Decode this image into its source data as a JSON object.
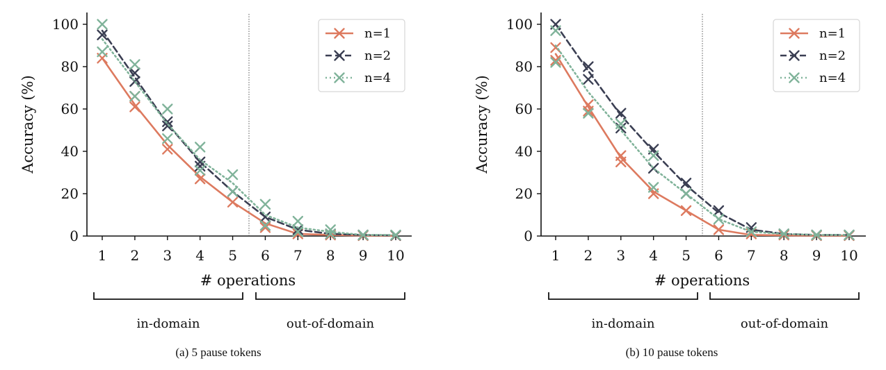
{
  "chart_data": [
    {
      "type": "line",
      "caption": "(a) 5 pause tokens",
      "xlabel": "# operations",
      "ylabel": "Accuracy (%)",
      "x": [
        1,
        2,
        3,
        4,
        5,
        6,
        7,
        8,
        9,
        10
      ],
      "xlim": [
        1,
        10
      ],
      "ylim": [
        0,
        100
      ],
      "yticks": [
        0,
        20,
        40,
        60,
        80,
        100
      ],
      "split_after": 5.5,
      "region_labels": [
        "in-domain",
        "out-of-domain"
      ],
      "legend_position": "top-right",
      "grid": false,
      "series_styles": [
        {
          "color": "#dd7a5f",
          "dash": "solid"
        },
        {
          "color": "#3b3f53",
          "dash": "dashed"
        },
        {
          "color": "#80b39a",
          "dash": "dotted"
        }
      ],
      "series": [
        {
          "name": "n=1",
          "markers": [
            [
              1,
              84
            ],
            [
              2,
              61
            ],
            [
              2,
              66
            ],
            [
              3,
              41
            ],
            [
              4,
              27
            ],
            [
              5,
              16
            ],
            [
              6,
              4
            ],
            [
              7,
              1
            ],
            [
              8,
              0.5
            ],
            [
              9,
              0.2
            ],
            [
              10,
              0.2
            ]
          ],
          "line": [
            84,
            62,
            43,
            28,
            16,
            6,
            1,
            0.5,
            0.2,
            0.2
          ]
        },
        {
          "name": "n=2",
          "markers": [
            [
              1,
              95
            ],
            [
              2,
              73
            ],
            [
              2,
              77
            ],
            [
              3,
              52
            ],
            [
              3,
              54
            ],
            [
              4,
              33
            ],
            [
              4,
              35
            ],
            [
              5,
              21
            ],
            [
              6,
              9
            ],
            [
              7,
              3
            ],
            [
              8,
              1
            ],
            [
              9,
              0.5
            ],
            [
              10,
              0.3
            ]
          ],
          "line": [
            97,
            75,
            53,
            35,
            21,
            9,
            3,
            1,
            0.5,
            0.3
          ]
        },
        {
          "name": "n=4",
          "markers": [
            [
              1,
              87
            ],
            [
              1,
              100
            ],
            [
              2,
              66
            ],
            [
              2,
              81
            ],
            [
              3,
              46
            ],
            [
              3,
              60
            ],
            [
              4,
              31
            ],
            [
              4,
              42
            ],
            [
              5,
              21
            ],
            [
              5,
              29
            ],
            [
              6,
              5
            ],
            [
              6,
              15
            ],
            [
              7,
              2
            ],
            [
              7,
              7
            ],
            [
              8,
              1
            ],
            [
              8,
              3
            ],
            [
              9,
              0.5
            ],
            [
              10,
              0.5
            ]
          ],
          "line": [
            93,
            73,
            53,
            36,
            25,
            10,
            4,
            2,
            0.5,
            0.5
          ]
        }
      ]
    },
    {
      "type": "line",
      "caption": "(b) 10 pause tokens",
      "xlabel": "# operations",
      "ylabel": "Accuracy (%)",
      "x": [
        1,
        2,
        3,
        4,
        5,
        6,
        7,
        8,
        9,
        10
      ],
      "xlim": [
        1,
        10
      ],
      "ylim": [
        0,
        100
      ],
      "yticks": [
        0,
        20,
        40,
        60,
        80,
        100
      ],
      "split_after": 5.5,
      "region_labels": [
        "in-domain",
        "out-of-domain"
      ],
      "legend_position": "top-right",
      "grid": false,
      "series_styles": [
        {
          "color": "#dd7a5f",
          "dash": "solid"
        },
        {
          "color": "#3b3f53",
          "dash": "dashed"
        },
        {
          "color": "#80b39a",
          "dash": "dotted"
        }
      ],
      "series": [
        {
          "name": "n=1",
          "markers": [
            [
              1,
              89
            ],
            [
              1,
              83
            ],
            [
              2,
              59
            ],
            [
              2,
              62
            ],
            [
              3,
              35
            ],
            [
              3,
              38
            ],
            [
              4,
              20
            ],
            [
              5,
              12
            ],
            [
              6,
              3
            ],
            [
              7,
              1
            ],
            [
              8,
              0.5
            ],
            [
              9,
              0.2
            ],
            [
              10,
              0.2
            ]
          ],
          "line": [
            86,
            61,
            37,
            21,
            12,
            3,
            0.5,
            0.3,
            0.2,
            0.2
          ]
        },
        {
          "name": "n=2",
          "markers": [
            [
              1,
              100
            ],
            [
              2,
              80
            ],
            [
              2,
              74
            ],
            [
              3,
              58
            ],
            [
              3,
              51
            ],
            [
              4,
              41
            ],
            [
              4,
              32
            ],
            [
              5,
              25
            ],
            [
              5,
              20
            ],
            [
              6,
              12
            ],
            [
              7,
              4
            ],
            [
              8,
              1
            ],
            [
              9,
              0.5
            ],
            [
              10,
              0.5
            ]
          ],
          "line": [
            100,
            78,
            57,
            40,
            24,
            11,
            3,
            1,
            0.5,
            0.5
          ]
        },
        {
          "name": "n=4",
          "markers": [
            [
              1,
              97
            ],
            [
              1,
              82
            ],
            [
              2,
              58
            ],
            [
              3,
              53
            ],
            [
              4,
              38
            ],
            [
              4,
              23
            ],
            [
              5,
              20
            ],
            [
              6,
              8
            ],
            [
              7,
              2
            ],
            [
              8,
              1
            ],
            [
              9,
              0.5
            ],
            [
              10,
              0.5
            ]
          ],
          "line": [
            90,
            68,
            50,
            32,
            20,
            8,
            2,
            1,
            0.5,
            0.5
          ]
        }
      ]
    }
  ]
}
